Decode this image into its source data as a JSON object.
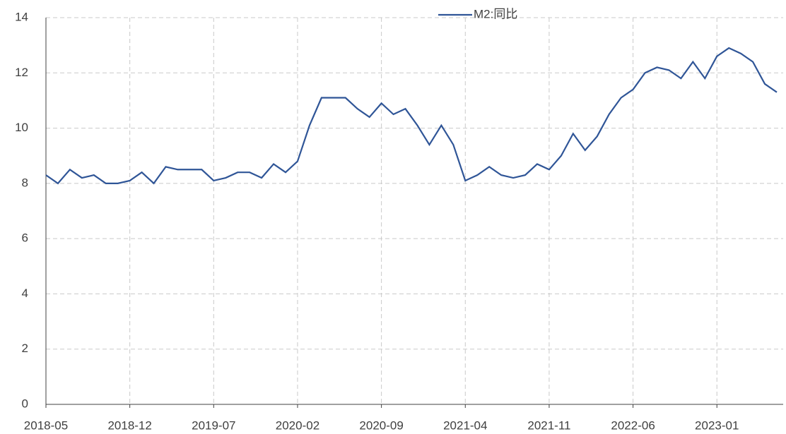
{
  "chart_data": {
    "type": "line",
    "categories": [
      "2018-05",
      null,
      null,
      null,
      null,
      null,
      null,
      "2018-12",
      null,
      null,
      null,
      null,
      null,
      null,
      "2019-07",
      null,
      null,
      null,
      null,
      null,
      null,
      "2020-02",
      null,
      null,
      null,
      null,
      null,
      null,
      "2020-09",
      null,
      null,
      null,
      null,
      null,
      null,
      "2021-04",
      null,
      null,
      null,
      null,
      null,
      null,
      "2021-11",
      null,
      null,
      null,
      null,
      null,
      null,
      "2022-06",
      null,
      null,
      null,
      null,
      null,
      null,
      "2023-01",
      null,
      null,
      null,
      null,
      null
    ],
    "series": [
      {
        "name": "M2:同比",
        "color": "#2f5597",
        "values": [
          8.3,
          8.0,
          8.5,
          8.2,
          8.3,
          8.0,
          8.0,
          8.1,
          8.4,
          8.0,
          8.6,
          8.5,
          8.5,
          8.5,
          8.1,
          8.2,
          8.4,
          8.4,
          8.2,
          8.7,
          8.4,
          8.8,
          10.1,
          11.1,
          11.1,
          11.1,
          10.7,
          10.4,
          10.9,
          10.5,
          10.7,
          10.1,
          9.4,
          10.1,
          9.4,
          8.1,
          8.3,
          8.6,
          8.3,
          8.2,
          8.3,
          8.7,
          8.5,
          9.0,
          9.8,
          9.2,
          9.7,
          10.5,
          11.1,
          11.4,
          12.0,
          12.2,
          12.1,
          11.8,
          12.4,
          11.8,
          12.6,
          12.9,
          12.7,
          12.4,
          11.6,
          11.3
        ]
      }
    ],
    "ylim": [
      0,
      14
    ],
    "yticks": [
      0,
      2,
      4,
      6,
      8,
      10,
      12,
      14
    ],
    "grid": true,
    "legend": "top"
  }
}
